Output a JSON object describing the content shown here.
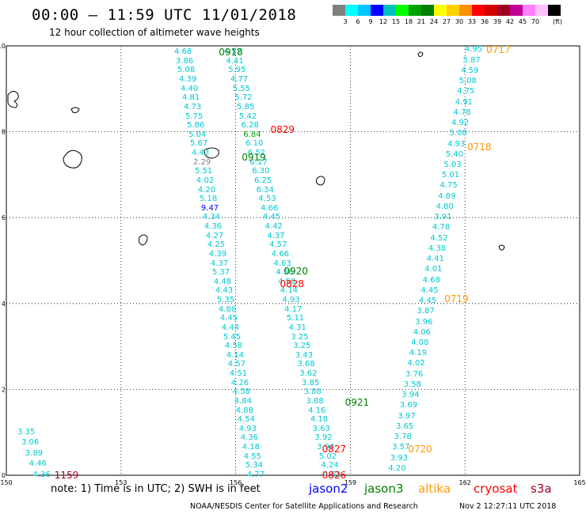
{
  "title": "00:00 – 11:59 UTC 11/01/2018",
  "subtitle": "12 hour collection of altimeter wave heights",
  "colorbar": {
    "unit": "(ft)",
    "colors": [
      "#808080",
      "#00ffff",
      "#00c8ff",
      "#0000ff",
      "#00bfbf",
      "#00ff00",
      "#00a000",
      "#008000",
      "#ffff00",
      "#ffd000",
      "#ff9000",
      "#ff0000",
      "#d00000",
      "#a00020",
      "#c00090",
      "#ff80ff",
      "#ffc0ff",
      "#000000"
    ],
    "labels": [
      "3",
      "6",
      "9",
      "12",
      "15",
      "18",
      "21",
      "24",
      "27",
      "30",
      "33",
      "36",
      "39",
      "42",
      "45",
      "70"
    ]
  },
  "axes": {
    "x_ticks": [
      "150",
      "153",
      "156",
      "159",
      "162",
      "165"
    ],
    "y_ticks": [
      "0",
      "2",
      "4",
      "6",
      "8",
      "10"
    ]
  },
  "time_labels": [
    {
      "text": "0918",
      "color": "#008000",
      "lon": 155.6,
      "lat": 9.85
    },
    {
      "text": "0829",
      "color": "#ff0000",
      "lon": 156.95,
      "lat": 8.05
    },
    {
      "text": "0919",
      "color": "#008000",
      "lon": 156.2,
      "lat": 7.4
    },
    {
      "text": "0920",
      "color": "#008000",
      "lon": 157.3,
      "lat": 4.75
    },
    {
      "text": "0828",
      "color": "#ff0000",
      "lon": 157.2,
      "lat": 4.45
    },
    {
      "text": "0921",
      "color": "#008000",
      "lon": 158.9,
      "lat": 1.7
    },
    {
      "text": "0827",
      "color": "#ff0000",
      "lon": 158.3,
      "lat": 0.6
    },
    {
      "text": "0826",
      "color": "#ff0000",
      "lon": 158.3,
      "lat": 0.0
    },
    {
      "text": "0717",
      "color": "#ff9900",
      "lon": 162.6,
      "lat": 9.9
    },
    {
      "text": "0718",
      "color": "#ff9900",
      "lon": 162.1,
      "lat": 7.65
    },
    {
      "text": "0719",
      "color": "#ff9900",
      "lon": 161.5,
      "lat": 4.1
    },
    {
      "text": "0720",
      "color": "#ff9900",
      "lon": 160.55,
      "lat": 0.6
    },
    {
      "text": "1159",
      "color": "#a00020",
      "lon": 151.3,
      "lat": 0.0
    }
  ],
  "tracks": [
    {
      "name": "track-a",
      "color": "#00c8d0",
      "values": [
        "4.68",
        "3.86",
        "5.08",
        "4.39",
        "4.40",
        "4.81",
        "4.73",
        "5.75",
        "5.86",
        "5.04",
        "5.67",
        "4.43",
        "2.29",
        "5.51",
        "4.02",
        "4.20",
        "5.18",
        "9.47",
        "4.34",
        "4.36",
        "4.27",
        "4.25",
        "4.39",
        "4.37",
        "5.37",
        "4.48",
        "4.43",
        "5.35",
        "4.86",
        "4.45",
        "4.44",
        "5.45",
        "4.58",
        "4.14",
        "4.57",
        "4.51",
        "4.26",
        "4.58",
        "4.84",
        "4.88",
        "4.54",
        "4.93",
        "4.36",
        "4.18",
        "4.55",
        "5.34",
        "4.77"
      ],
      "lat_start": 9.85,
      "lat_end": 0.0,
      "lon_start": 154.6,
      "lon_end": 156.5
    },
    {
      "name": "track-b",
      "color": "#00c8d0",
      "values": [
        "4.52",
        "4.41",
        "5.95",
        "4.77",
        "5.55",
        "5.72",
        "5.85",
        "5.42",
        "6.28",
        "6.84",
        "6.10",
        "6.52",
        "6.17",
        "6.30",
        "6.25",
        "6.34",
        "4.53",
        "4.66",
        "4.45",
        "4.42",
        "4.37",
        "4.57",
        "4.66",
        "4.63",
        "4.56",
        "4.58",
        "4.14",
        "4.93",
        "4.17",
        "5.11",
        "4.31",
        "3.25",
        "3.25",
        "3.43",
        "3.68",
        "3.62",
        "3.85",
        "3.88",
        "3.88",
        "4.16",
        "4.18",
        "3.63",
        "3.92",
        "3.94",
        "5.02",
        "4.24",
        "4.52"
      ],
      "lat_start": 9.85,
      "lat_end": 0.0,
      "lon_start": 155.9,
      "lon_end": 158.5
    },
    {
      "name": "track-c",
      "color": "#00c8d0",
      "values": [
        "4.95",
        "5.87",
        "4.59",
        "5.08",
        "4.75",
        "4.91",
        "4.78",
        "4.92",
        "5.08",
        "4.93",
        "5.40",
        "5.03",
        "5.01",
        "4.75",
        "4.89",
        "4.80",
        "3.91",
        "4.78",
        "4.52",
        "4.38",
        "4.41",
        "4.01",
        "4.68",
        "4.45",
        "4.45",
        "3.87",
        "3.96",
        "4.06",
        "4.08",
        "4.19",
        "4.02",
        "3.76",
        "3.58",
        "3.94",
        "3.69",
        "3.97",
        "3.65",
        "3.78",
        "3.57",
        "3.93",
        "4.20"
      ],
      "lat_start": 9.9,
      "lat_end": 0.15,
      "lon_start": 162.2,
      "lon_end": 160.2
    },
    {
      "name": "track-d",
      "color": "#00c8d0",
      "values": [
        "3.35",
        "3.06",
        "3.89",
        "4.46",
        "4.36"
      ],
      "lat_start": 1.0,
      "lat_end": 0.0,
      "lon_start": 150.5,
      "lon_end": 150.9
    }
  ],
  "legend": {
    "note": "note:  1) Time is in UTC;  2) SWH is in feet",
    "satellites": [
      {
        "name": "jason2",
        "color": "#0000ff"
      },
      {
        "name": "jason3",
        "color": "#008000"
      },
      {
        "name": "altika",
        "color": "#ff9900"
      },
      {
        "name": "cryosat",
        "color": "#ff0000"
      },
      {
        "name": "s3a",
        "color": "#a00020"
      }
    ]
  },
  "footer": "NOAA/NESDIS Center for Satellite Applications and Research",
  "footer_time": "Nov  2 12:27:11 UTC 2018"
}
